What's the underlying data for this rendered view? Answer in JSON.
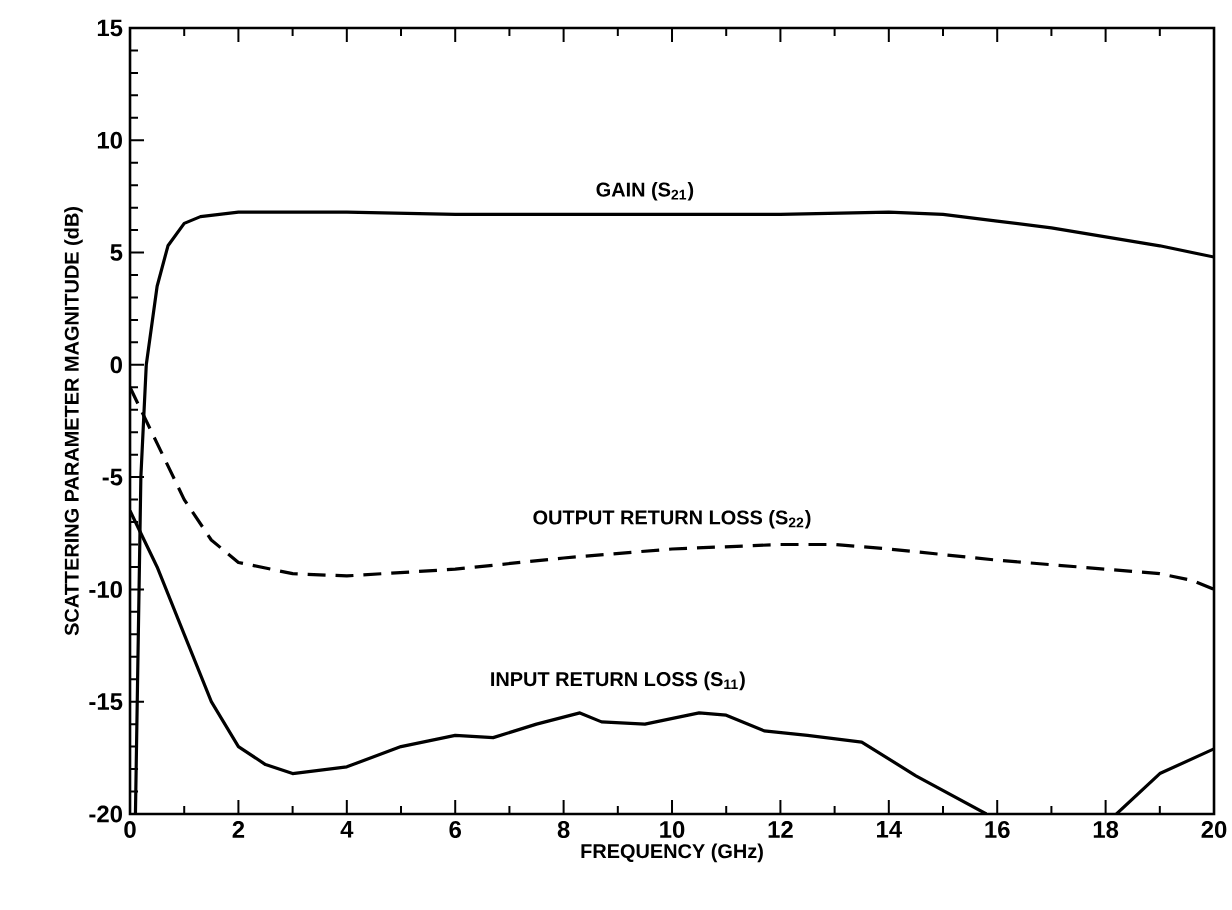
{
  "chart_data": {
    "type": "line",
    "xlabel": "FREQUENCY (GHz)",
    "ylabel": "SCATTERING PARAMETER MAGNITUDE (dB)",
    "xlim": [
      0,
      20
    ],
    "ylim": [
      -20,
      15
    ],
    "xticks": [
      0,
      2,
      4,
      6,
      8,
      10,
      12,
      14,
      16,
      18,
      20
    ],
    "yticks": [
      -20,
      -15,
      -10,
      -5,
      0,
      5,
      10,
      15
    ],
    "grid": false,
    "legend": false,
    "marker": "none",
    "series": [
      {
        "name": "GAIN (S$_{21}$)",
        "color": "#000000",
        "line_style": "solid",
        "x": [
          0.1,
          0.2,
          0.3,
          0.5,
          0.7,
          1.0,
          1.3,
          2,
          4,
          6,
          8,
          10,
          12,
          14,
          15,
          16,
          17,
          18,
          19,
          20
        ],
        "values": [
          -20,
          -5,
          0,
          3.5,
          5.3,
          6.3,
          6.6,
          6.8,
          6.8,
          6.7,
          6.7,
          6.7,
          6.7,
          6.8,
          6.7,
          6.4,
          6.1,
          5.7,
          5.3,
          4.8
        ]
      },
      {
        "name": "OUTPUT RETURN LOSS (S$_{22}$)",
        "color": "#000000",
        "line_style": "dashed",
        "x": [
          0,
          0.5,
          1,
          1.5,
          2,
          3,
          4,
          6,
          8,
          10,
          12,
          13,
          14,
          16,
          18,
          19,
          19.6,
          20
        ],
        "values": [
          -1,
          -3.5,
          -6,
          -7.8,
          -8.8,
          -9.3,
          -9.4,
          -9.1,
          -8.6,
          -8.2,
          -8.0,
          -8.0,
          -8.2,
          -8.7,
          -9.1,
          -9.3,
          -9.6,
          -10.0
        ]
      },
      {
        "name": "INPUT RETURN LOSS (S$_{11}$)",
        "color": "#000000",
        "line_style": "solid",
        "x": [
          0,
          0.5,
          1,
          1.5,
          2,
          2.5,
          3,
          4,
          5,
          6,
          6.7,
          7.5,
          8.3,
          8.7,
          9.5,
          10.5,
          11,
          11.7,
          12.5,
          13.5,
          14.5,
          15.8,
          17,
          18.2,
          19,
          20
        ],
        "values": [
          -6.5,
          -9,
          -12,
          -15,
          -17,
          -17.8,
          -18.2,
          -17.9,
          -17,
          -16.5,
          -16.6,
          -16.0,
          -15.5,
          -15.9,
          -16.0,
          -15.5,
          -15.6,
          -16.3,
          -16.5,
          -16.8,
          -18.3,
          -20,
          null,
          -20,
          -18.2,
          -17.1
        ]
      }
    ]
  }
}
